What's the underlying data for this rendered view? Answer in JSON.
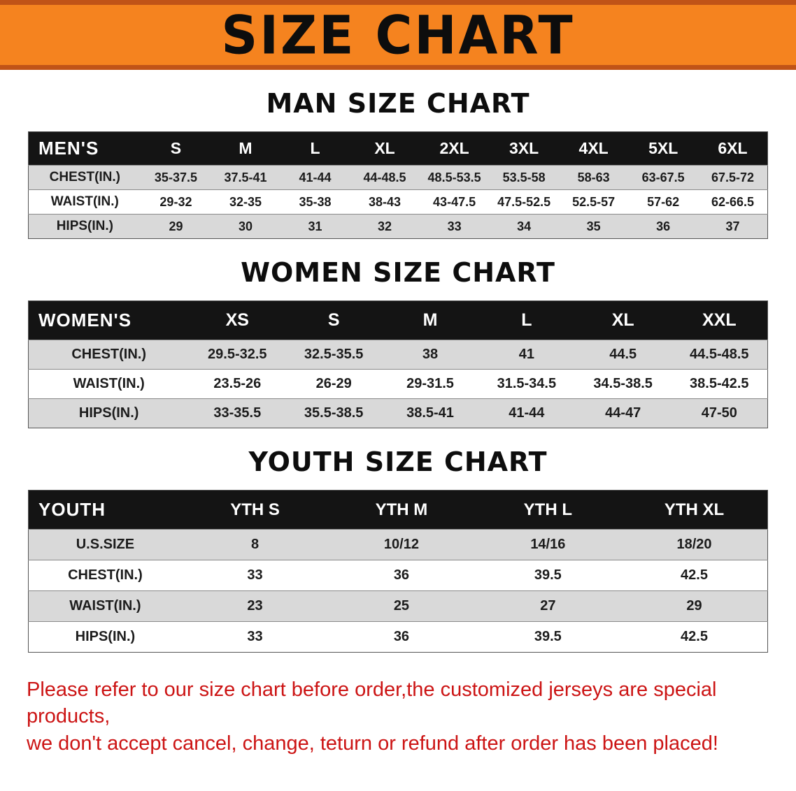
{
  "banner": {
    "title": "SIZE CHART",
    "bg_color": "#f5831f",
    "border_color": "#c05317"
  },
  "sections": [
    {
      "title": "MAN SIZE CHART",
      "header_label": "MEN'S",
      "columns": [
        "S",
        "M",
        "L",
        "XL",
        "2XL",
        "3XL",
        "4XL",
        "5XL",
        "6XL"
      ],
      "rows": [
        {
          "label": "CHEST(IN.)",
          "values": [
            "35-37.5",
            "37.5-41",
            "41-44",
            "44-48.5",
            "48.5-53.5",
            "53.5-58",
            "58-63",
            "63-67.5",
            "67.5-72"
          ]
        },
        {
          "label": "WAIST(IN.)",
          "values": [
            "29-32",
            "32-35",
            "35-38",
            "38-43",
            "43-47.5",
            "47.5-52.5",
            "52.5-57",
            "57-62",
            "62-66.5"
          ]
        },
        {
          "label": "HIPS(IN.)",
          "values": [
            "29",
            "30",
            "31",
            "32",
            "33",
            "34",
            "35",
            "36",
            "37"
          ]
        }
      ]
    },
    {
      "title": "WOMEN SIZE CHART",
      "header_label": "WOMEN'S",
      "columns": [
        "XS",
        "S",
        "M",
        "L",
        "XL",
        "XXL"
      ],
      "rows": [
        {
          "label": "CHEST(IN.)",
          "values": [
            "29.5-32.5",
            "32.5-35.5",
            "38",
            "41",
            "44.5",
            "44.5-48.5"
          ]
        },
        {
          "label": "WAIST(IN.)",
          "values": [
            "23.5-26",
            "26-29",
            "29-31.5",
            "31.5-34.5",
            "34.5-38.5",
            "38.5-42.5"
          ]
        },
        {
          "label": "HIPS(IN.)",
          "values": [
            "33-35.5",
            "35.5-38.5",
            "38.5-41",
            "41-44",
            "44-47",
            "47-50"
          ]
        }
      ]
    },
    {
      "title": "YOUTH SIZE CHART",
      "header_label": "YOUTH",
      "columns": [
        "YTH S",
        "YTH M",
        "YTH L",
        "YTH XL"
      ],
      "rows": [
        {
          "label": "U.S.SIZE",
          "values": [
            "8",
            "10/12",
            "14/16",
            "18/20"
          ]
        },
        {
          "label": "CHEST(IN.)",
          "values": [
            "33",
            "36",
            "39.5",
            "42.5"
          ]
        },
        {
          "label": "WAIST(IN.)",
          "values": [
            "23",
            "25",
            "27",
            "29"
          ]
        },
        {
          "label": "HIPS(IN.)",
          "values": [
            "33",
            "36",
            "39.5",
            "42.5"
          ]
        }
      ]
    }
  ],
  "footer": {
    "line1": "Please refer to our size chart before order,the customized jerseys are special products,",
    "line2": "we don't accept cancel, change, teturn or refund after order has been placed!"
  }
}
